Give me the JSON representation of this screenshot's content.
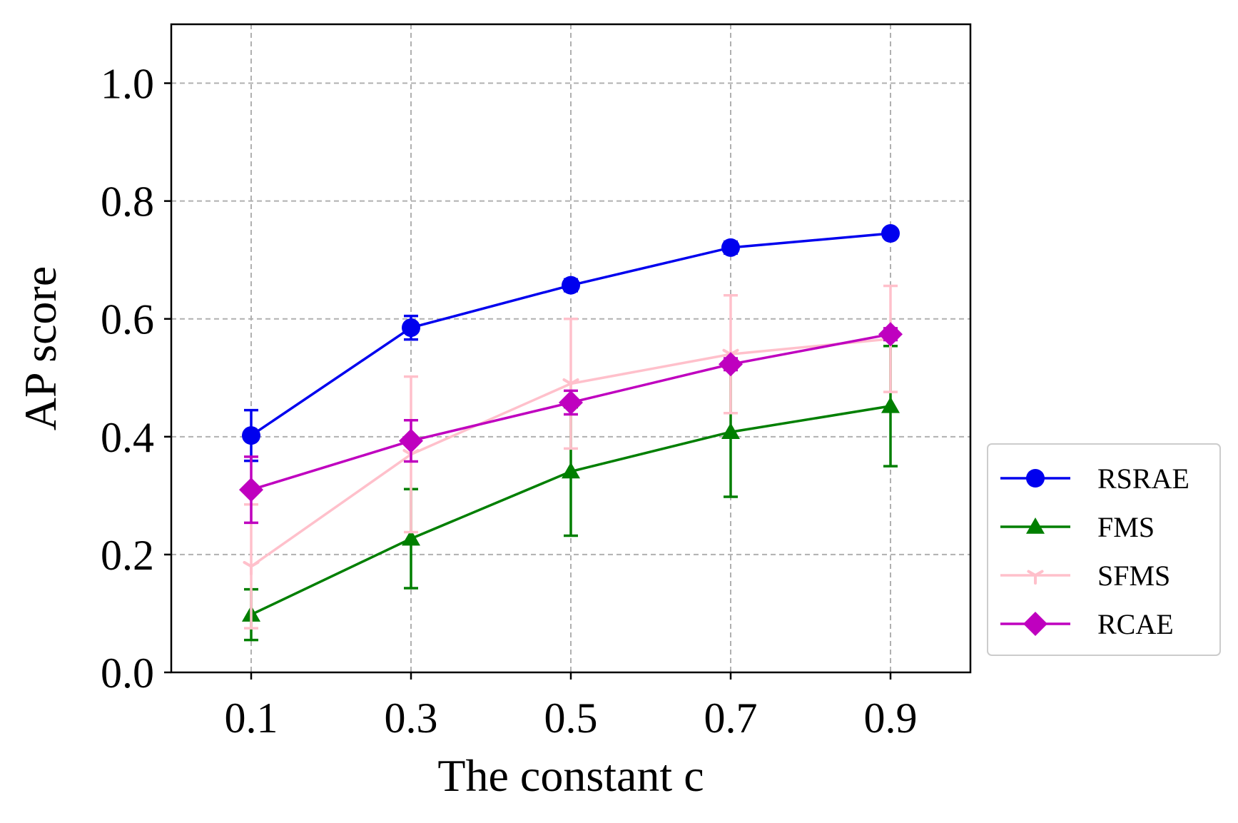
{
  "chart_data": {
    "type": "line",
    "title": "",
    "xlabel": "The constant c",
    "ylabel": "AP score",
    "x": [
      0.1,
      0.3,
      0.5,
      0.7,
      0.9
    ],
    "x_tick_labels": [
      "0.1",
      "0.3",
      "0.5",
      "0.7",
      "0.9"
    ],
    "xlim": [
      0.0,
      1.0
    ],
    "ylim": [
      0.0,
      1.1
    ],
    "y_ticks": [
      0.0,
      0.2,
      0.4,
      0.6,
      0.8,
      1.0
    ],
    "y_tick_labels": [
      "0.0",
      "0.2",
      "0.4",
      "0.6",
      "0.8",
      "1.0"
    ],
    "grid": true,
    "legend_position": "outside-right-bottom",
    "series": [
      {
        "name": "RSRAE",
        "color": "#0000ee",
        "marker": "circle",
        "values": [
          0.402,
          0.585,
          0.657,
          0.721,
          0.745
        ],
        "errors": [
          0.043,
          0.02,
          0.01,
          0.01,
          0.005
        ]
      },
      {
        "name": "FMS",
        "color": "#007f00",
        "marker": "triangle",
        "values": [
          0.098,
          0.227,
          0.341,
          0.408,
          0.452
        ],
        "errors": [
          0.043,
          0.084,
          0.109,
          0.11,
          0.102
        ]
      },
      {
        "name": "SFMS",
        "color": "#ffc0cb",
        "marker": "tri-down",
        "values": [
          0.18,
          0.37,
          0.49,
          0.54,
          0.566
        ],
        "errors": [
          0.105,
          0.132,
          0.11,
          0.1,
          0.09
        ]
      },
      {
        "name": "RCAE",
        "color": "#bf00bf",
        "marker": "diamond",
        "values": [
          0.31,
          0.393,
          0.458,
          0.523,
          0.574
        ],
        "errors": [
          0.056,
          0.035,
          0.02,
          0.01,
          0.01
        ]
      }
    ]
  }
}
